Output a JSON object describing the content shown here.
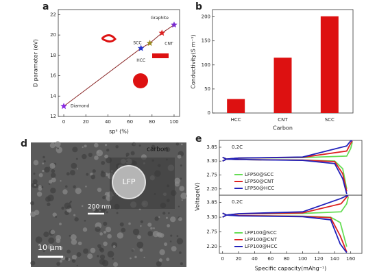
{
  "chart_data": [
    {
      "type": "scatter",
      "panel": "a",
      "xlabel": "sp³ (%)",
      "ylabel": "D parameter (eV)",
      "x": [
        0,
        70,
        78,
        89,
        100
      ],
      "values": [
        13,
        18.7,
        19.2,
        20.2,
        21
      ],
      "point_labels": [
        "Diamond",
        "HCC",
        "SCC",
        "CNT",
        "Graphite"
      ],
      "point_colors": [
        "#8a2be2",
        "#2233cc",
        "#9a8a20",
        "#dd2222",
        "#7a2bd0"
      ],
      "color": "#8b2a2a",
      "xlim": [
        -5,
        105
      ],
      "xticks": [
        0,
        20,
        40,
        60,
        80,
        100
      ],
      "ylim": [
        12,
        22.5
      ],
      "yticks": [
        12,
        14,
        16,
        18,
        20,
        22
      ]
    },
    {
      "type": "bar",
      "panel": "b",
      "xlabel": "Carbon",
      "ylabel": "Conductivity(S m⁻¹)",
      "categories": [
        "HCC",
        "CNT",
        "SCC"
      ],
      "values": [
        29,
        115,
        201
      ],
      "color": "#dd1111",
      "ylim": [
        0,
        215
      ],
      "yticks": [
        0,
        50,
        100,
        150,
        200
      ]
    },
    {
      "type": "line",
      "panel": "e",
      "ylabel": "Voltage(V)",
      "annotation": "0.2C",
      "legend": "left",
      "xlim": [
        -4,
        174
      ],
      "ylim": [
        1.95,
        4.12
      ],
      "yticks": [
        {
          "value": 2.2,
          "label": "2.20"
        },
        2.75,
        {
          "value": 3.3,
          "label": "3.30"
        },
        3.85
      ],
      "x": [
        0,
        5,
        20,
        100,
        140,
        150,
        155,
        null,
        0,
        5,
        20,
        100,
        155,
        160,
        162
      ],
      "series": [
        {
          "name": "LFP50@SCC",
          "color": "#66dd55",
          "values": [
            3.45,
            3.38,
            3.36,
            3.34,
            3.3,
            3.0,
            2.2,
            null,
            3.3,
            3.38,
            3.42,
            3.44,
            3.5,
            3.8,
            4.05
          ]
        },
        {
          "name": "LFP50@CNT",
          "color": "#dd2222",
          "values": [
            3.45,
            3.38,
            3.36,
            3.34,
            3.28,
            2.8,
            2.1,
            null,
            3.3,
            3.38,
            3.42,
            3.45,
            3.7,
            4.0,
            4.1
          ]
        },
        {
          "name": "LFP50@HCC",
          "color": "#2222bb",
          "values": [
            3.45,
            3.38,
            3.36,
            3.33,
            3.2,
            2.6,
            2.0,
            null,
            3.3,
            3.38,
            3.42,
            3.46,
            3.9,
            4.1,
            4.1
          ]
        }
      ]
    },
    {
      "type": "line",
      "annotation": "0.2C",
      "legend": "left",
      "xlabel": "Specific capacity(mAhg⁻¹)",
      "xlim": [
        -4,
        174
      ],
      "xticks": [
        0,
        20,
        40,
        60,
        80,
        100,
        120,
        140,
        160
      ],
      "ylim": [
        1.95,
        4.12
      ],
      "yticks": [
        {
          "value": 2.2,
          "label": "2.20"
        },
        2.75,
        {
          "value": 3.3,
          "label": "3.30"
        },
        3.85
      ],
      "x": [
        0,
        5,
        20,
        100,
        135,
        147,
        155,
        null,
        0,
        5,
        20,
        100,
        148,
        155,
        157
      ],
      "series": [
        {
          "name": "LFP100@SCC",
          "color": "#66dd55",
          "values": [
            3.45,
            3.38,
            3.36,
            3.34,
            3.3,
            3.1,
            2.2,
            null,
            3.3,
            3.38,
            3.42,
            3.44,
            3.5,
            3.8,
            4.05
          ]
        },
        {
          "name": "LFP100@CNT",
          "color": "#dd2222",
          "values": [
            3.45,
            3.38,
            3.36,
            3.33,
            3.28,
            2.6,
            2.0,
            null,
            3.3,
            3.38,
            3.42,
            3.46,
            3.8,
            4.05,
            4.1
          ]
        },
        {
          "name": "LFP100@HCC",
          "color": "#2222bb",
          "values": [
            3.45,
            3.38,
            3.35,
            3.32,
            3.2,
            2.3,
            1.98,
            null,
            3.3,
            3.38,
            3.43,
            3.5,
            4.0,
            4.1,
            4.1
          ]
        }
      ]
    }
  ],
  "image_panel": {
    "panel": "d",
    "labels": [
      "carbon",
      "LFP",
      "200 nm",
      "10 μm"
    ]
  }
}
